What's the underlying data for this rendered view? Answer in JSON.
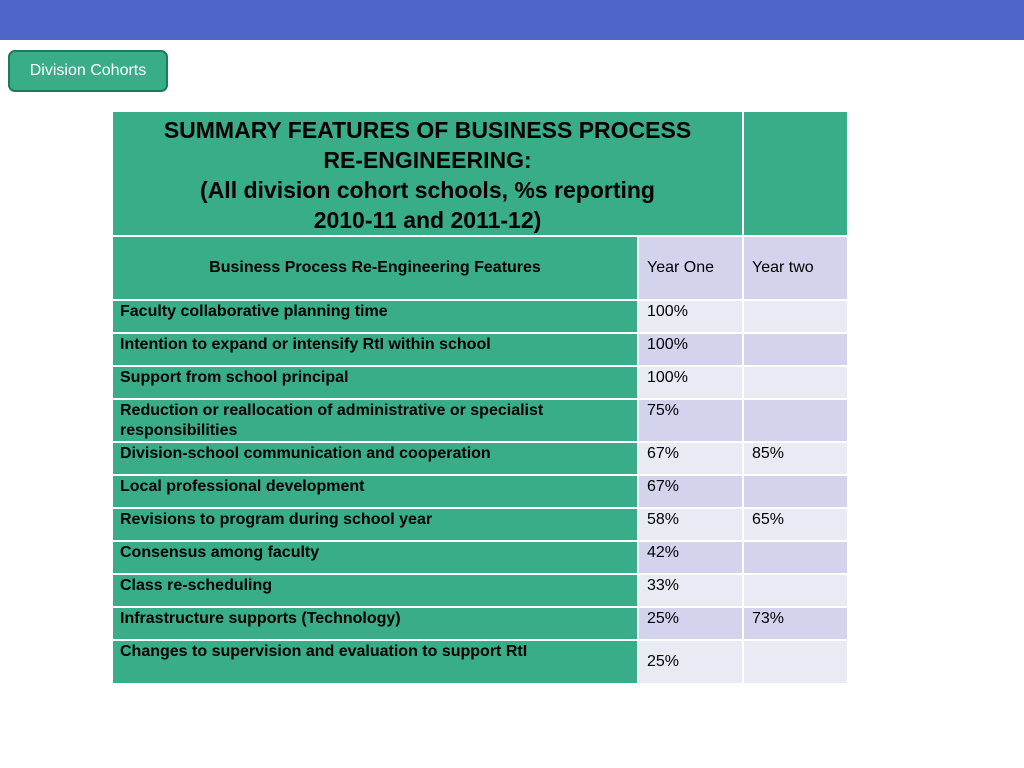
{
  "header": {
    "button_label": "Division Cohorts"
  },
  "table": {
    "title_lines": [
      "SUMMARY FEATURES OF BUSINESS PROCESS",
      "RE-ENGINEERING:",
      "(All division cohort schools, %s reporting",
      "2010-11 and 2011-12)"
    ],
    "columns": [
      "Business Process Re-Engineering Features",
      "Year One",
      "Year two"
    ],
    "rows": [
      {
        "feature": "Faculty collaborative planning time",
        "year_one": "100%",
        "year_two": ""
      },
      {
        "feature": "Intention to expand or intensify RtI within school",
        "year_one": "100%",
        "year_two": ""
      },
      {
        "feature": "Support from school principal",
        "year_one": "100%",
        "year_two": ""
      },
      {
        "feature": "Reduction or reallocation of administrative or specialist responsibilities",
        "year_one": "75%",
        "year_two": ""
      },
      {
        "feature": "Division-school communication and cooperation",
        "year_one": "67%",
        "year_two": "85%"
      },
      {
        "feature": "Local professional development",
        "year_one": "67%",
        "year_two": ""
      },
      {
        "feature": "Revisions to program during school year",
        "year_one": "58%",
        "year_two": "65%"
      },
      {
        "feature": "Consensus among faculty",
        "year_one": "42%",
        "year_two": ""
      },
      {
        "feature": "Class re-scheduling",
        "year_one": "33%",
        "year_two": ""
      },
      {
        "feature": "Infrastructure supports (Technology)",
        "year_one": "25%",
        "year_two": "73%"
      },
      {
        "feature": "Changes to supervision and evaluation to support RtI",
        "year_one": "25%",
        "year_two": ""
      }
    ]
  },
  "colors": {
    "top_bar": "#4f66c8",
    "green": "#38ad88",
    "row_light": "#e8ebf4",
    "row_lavender": "#d3d3ee"
  }
}
